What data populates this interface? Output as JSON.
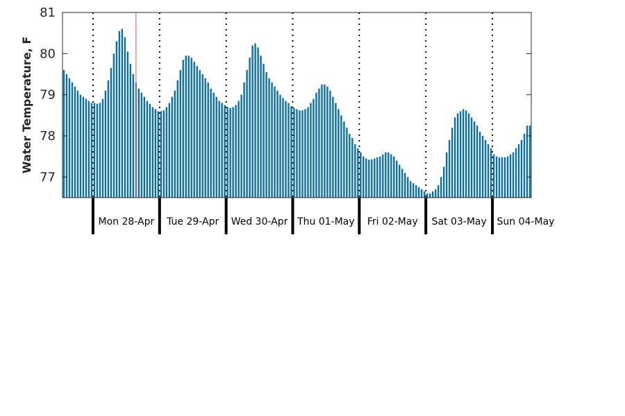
{
  "chart_data": {
    "type": "bar",
    "title": "",
    "xlabel": "",
    "ylabel": "Water Temperature, F",
    "ylim": [
      76.5,
      81
    ],
    "yticks": [
      77,
      78,
      79,
      80,
      81
    ],
    "grid": false,
    "colors": {
      "bar": "#0b6ea5",
      "marker": "#f26b6b",
      "day_line": "#000000",
      "axes": "#262626"
    },
    "day_labels": [
      "Mon 28-Apr",
      "Tue 29-Apr",
      "Wed 30-Apr",
      "Thu 01-May",
      "Fri 02-May",
      "Sat 03-May",
      "Sun 04-May"
    ],
    "hours_before_first_day": 11,
    "current_time_hour_index": 26,
    "series": [
      {
        "values": [
          79.6,
          79.5,
          79.4,
          79.3,
          79.2,
          79.1,
          79.0,
          78.95,
          78.9,
          78.85,
          78.8,
          78.8,
          78.78,
          78.8,
          78.9,
          79.1,
          79.35,
          79.65,
          80.0,
          80.3,
          80.55,
          80.6,
          80.4,
          80.05,
          79.75,
          79.5,
          79.3,
          79.15,
          79.05,
          78.95,
          78.85,
          78.78,
          78.7,
          78.65,
          78.6,
          78.6,
          78.62,
          78.7,
          78.8,
          78.95,
          79.1,
          79.35,
          79.6,
          79.85,
          79.95,
          79.95,
          79.9,
          79.8,
          79.7,
          79.6,
          79.5,
          79.4,
          79.3,
          79.15,
          79.05,
          78.95,
          78.85,
          78.8,
          78.75,
          78.7,
          78.68,
          78.7,
          78.75,
          78.85,
          79.0,
          79.3,
          79.6,
          79.9,
          80.2,
          80.25,
          80.15,
          79.95,
          79.75,
          79.55,
          79.4,
          79.3,
          79.2,
          79.1,
          79.0,
          78.92,
          78.85,
          78.8,
          78.72,
          78.68,
          78.65,
          78.62,
          78.62,
          78.65,
          78.7,
          78.8,
          78.9,
          79.05,
          79.15,
          79.25,
          79.25,
          79.2,
          79.1,
          78.95,
          78.8,
          78.65,
          78.5,
          78.35,
          78.2,
          78.05,
          77.95,
          77.8,
          77.7,
          77.6,
          77.5,
          77.45,
          77.42,
          77.43,
          77.45,
          77.48,
          77.5,
          77.55,
          77.6,
          77.6,
          77.55,
          77.5,
          77.4,
          77.3,
          77.2,
          77.1,
          77.0,
          76.9,
          76.85,
          76.8,
          76.75,
          76.7,
          76.65,
          76.6,
          76.6,
          76.65,
          76.7,
          76.8,
          77.0,
          77.25,
          77.6,
          77.9,
          78.2,
          78.45,
          78.55,
          78.6,
          78.65,
          78.62,
          78.55,
          78.45,
          78.35,
          78.25,
          78.1,
          78.0,
          77.9,
          77.8,
          77.7,
          77.55,
          77.5,
          77.48,
          77.48,
          77.48,
          77.5,
          77.55,
          77.6,
          77.7,
          77.8,
          77.9,
          78.05,
          78.25,
          78.25
        ]
      }
    ]
  }
}
